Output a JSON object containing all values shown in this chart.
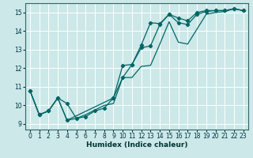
{
  "xlabel": "Humidex (Indice chaleur)",
  "bg_color": "#cce8e8",
  "grid_color": "#aacccc",
  "line_color": "#006666",
  "xlim": [
    -0.5,
    23.5
  ],
  "ylim": [
    8.7,
    15.5
  ],
  "xticks": [
    0,
    1,
    2,
    3,
    4,
    5,
    6,
    7,
    8,
    9,
    10,
    11,
    12,
    13,
    14,
    15,
    16,
    17,
    18,
    19,
    20,
    21,
    22,
    23
  ],
  "yticks": [
    9,
    10,
    11,
    12,
    13,
    14,
    15
  ],
  "line1_x": [
    0,
    1,
    2,
    3,
    4,
    5,
    6,
    7,
    8,
    9,
    10,
    11,
    12,
    13,
    14,
    15,
    16,
    17,
    18,
    19,
    20,
    21,
    22,
    23
  ],
  "line1_y": [
    10.8,
    9.5,
    9.7,
    10.4,
    10.1,
    9.3,
    9.4,
    9.7,
    9.85,
    10.4,
    11.5,
    12.2,
    13.25,
    14.45,
    14.4,
    14.9,
    14.7,
    14.55,
    15.0,
    15.1,
    15.1,
    15.1,
    15.2,
    15.1
  ],
  "line2_x": [
    0,
    1,
    2,
    3,
    4,
    9,
    10,
    11,
    12,
    13,
    14,
    15,
    16,
    17,
    18,
    19,
    20,
    21,
    22,
    23
  ],
  "line2_y": [
    10.8,
    9.5,
    9.7,
    10.4,
    9.2,
    10.4,
    12.15,
    12.2,
    13.1,
    13.2,
    14.35,
    14.9,
    14.45,
    14.35,
    14.9,
    15.05,
    15.1,
    15.1,
    15.2,
    15.1
  ],
  "line3_x": [
    0,
    1,
    2,
    3,
    4,
    5,
    6,
    7,
    8,
    9,
    10,
    11,
    12,
    13,
    14,
    15,
    16,
    17,
    18,
    19,
    20,
    21,
    22,
    23
  ],
  "line3_y": [
    10.8,
    9.5,
    9.7,
    10.4,
    9.2,
    9.3,
    9.5,
    9.75,
    10.0,
    10.1,
    11.5,
    11.5,
    12.1,
    12.15,
    13.3,
    14.5,
    13.4,
    13.3,
    14.1,
    14.9,
    15.0,
    15.05,
    15.2,
    15.1
  ]
}
